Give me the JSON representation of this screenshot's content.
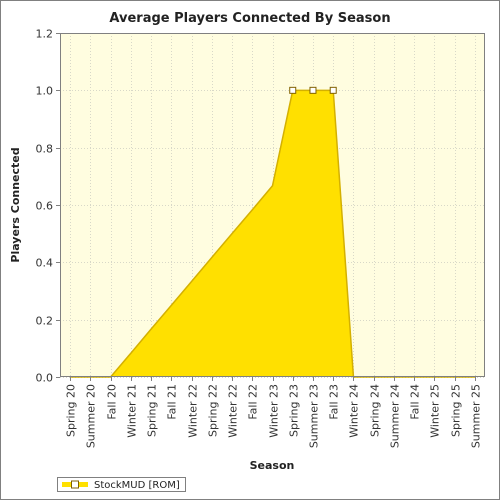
{
  "chart_data": {
    "type": "area",
    "title": "Average Players Connected By Season",
    "xlabel": "Season",
    "ylabel": "Players Connected",
    "ylim": [
      0,
      1.2
    ],
    "yticks": [
      "0.0",
      "0.2",
      "0.4",
      "0.6",
      "0.8",
      "1.0",
      "1.2"
    ],
    "grid": true,
    "legend_position": "bottom-left",
    "categories": [
      "Spring 20",
      "Summer 20",
      "Fall 20",
      "Winter 21",
      "Spring 21",
      "Fall 21",
      "Winter 22",
      "Spring 22",
      "Winter 22",
      "Fall 22",
      "Winter 23",
      "Spring 23",
      "Summer 23",
      "Fall 23",
      "Winter 24",
      "Spring 24",
      "Summer 24",
      "Fall 24",
      "Winter 25",
      "Spring 25",
      "Summer 25"
    ],
    "series": [
      {
        "name": "StockMUD [ROM]",
        "color": "#ffe000",
        "edge_color": "#d4b000",
        "values": [
          0,
          0,
          0,
          0.083,
          0.167,
          0.25,
          0.333,
          0.417,
          0.5,
          0.583,
          0.667,
          1.0,
          1.0,
          1.0,
          0,
          0,
          0,
          0,
          0,
          0,
          0
        ],
        "markers": [
          false,
          false,
          false,
          false,
          false,
          false,
          false,
          false,
          false,
          false,
          false,
          true,
          true,
          true,
          false,
          false,
          false,
          false,
          false,
          false,
          false
        ]
      }
    ]
  }
}
